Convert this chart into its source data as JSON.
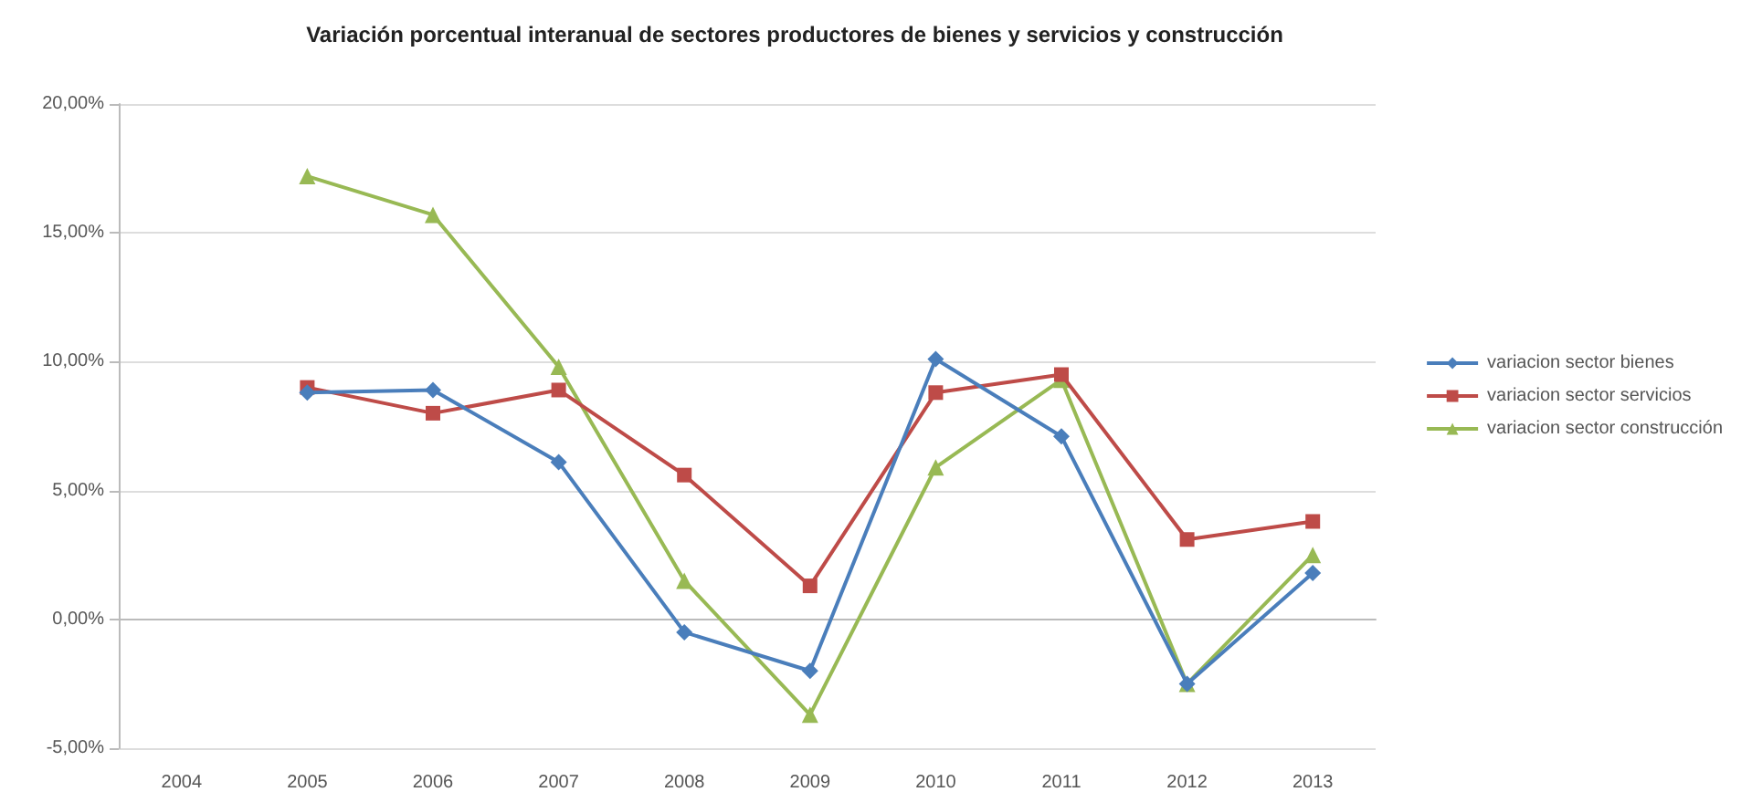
{
  "chart_data": {
    "type": "line",
    "title": "Variación porcentual interanual de sectores productores de bienes y servicios y construcción",
    "categories": [
      "2004",
      "2005",
      "2006",
      "2007",
      "2008",
      "2009",
      "2010",
      "2011",
      "2012",
      "2013"
    ],
    "series": [
      {
        "name": "variacion sector bienes",
        "color": "#4a7ebb",
        "marker": "diamond",
        "values": [
          null,
          8.8,
          8.9,
          6.1,
          -0.5,
          -2.0,
          10.1,
          7.1,
          -2.5,
          1.8
        ]
      },
      {
        "name": "variacion sector servicios",
        "color": "#be4b48",
        "marker": "square",
        "values": [
          null,
          9.0,
          8.0,
          8.9,
          5.6,
          1.3,
          8.8,
          9.5,
          3.1,
          3.8
        ]
      },
      {
        "name": "variacion sector construcción",
        "color": "#98b954",
        "marker": "triangle",
        "values": [
          null,
          17.2,
          15.7,
          9.8,
          1.5,
          -3.7,
          5.9,
          9.3,
          -2.5,
          2.5
        ]
      }
    ],
    "ylim": [
      -5,
      20
    ],
    "yticks": [
      {
        "value": -5,
        "label": "-5,00%"
      },
      {
        "value": 0,
        "label": "0,00%"
      },
      {
        "value": 5,
        "label": "5,00%"
      },
      {
        "value": 10,
        "label": "10,00%"
      },
      {
        "value": 15,
        "label": "15,00%"
      },
      {
        "value": 20,
        "label": "20,00%"
      }
    ],
    "grid": "y",
    "legend": "right"
  }
}
